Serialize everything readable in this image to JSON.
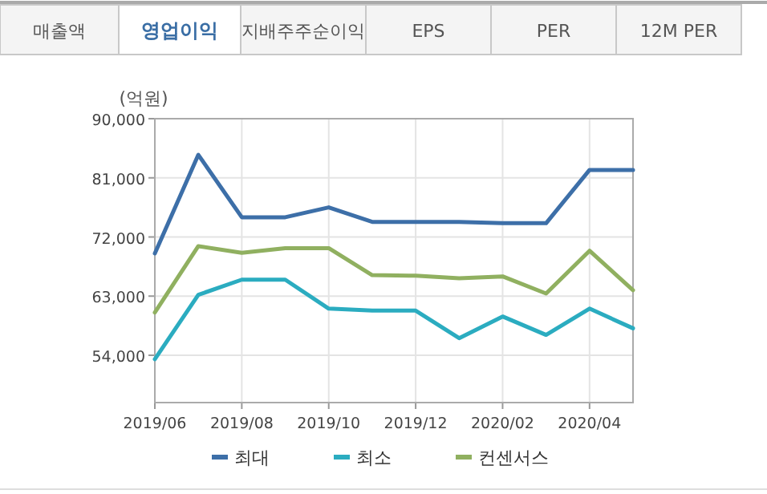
{
  "chart_data": {
    "type": "line",
    "ylabel": "(억원)",
    "annotations": [
      "매출액",
      "영업이익",
      "지배주주순이익",
      "EPS",
      "PER",
      "12M PER"
    ],
    "x": [
      "2019-06",
      "2019-07",
      "2019-08",
      "2019-09",
      "2019-10",
      "2019-11",
      "2019-12",
      "2020-01",
      "2020-02",
      "2020-03",
      "2020-04",
      "2020-05"
    ],
    "series": [
      {
        "name": "최대",
        "color": "#3d6fa8",
        "values": [
          69500,
          84500,
          75000,
          75000,
          76500,
          74300,
          74300,
          74300,
          74100,
          74100,
          82200,
          82200
        ]
      },
      {
        "name": "최소",
        "color": "#2bacc0",
        "values": [
          53400,
          63200,
          65500,
          65500,
          61100,
          60800,
          60800,
          56600,
          59900,
          57100,
          61100,
          58100
        ]
      },
      {
        "name": "컨센서스",
        "color": "#90b060",
        "values": [
          60500,
          70600,
          69600,
          70300,
          70300,
          66200,
          66100,
          65700,
          66000,
          63400,
          69900,
          63900
        ]
      }
    ],
    "xlim": [
      "2019-06",
      "2020-05"
    ],
    "xticks": [
      {
        "value": "2019-06",
        "label": "2019/06"
      },
      {
        "value": "2019-08",
        "label": "2019/08"
      },
      {
        "value": "2019-10",
        "label": "2019/10"
      },
      {
        "value": "2019-12",
        "label": "2019/12"
      },
      {
        "value": "2020-02",
        "label": "2020/02"
      },
      {
        "value": "2020-04",
        "label": "2020/04"
      }
    ],
    "ylim": [
      46800,
      90000
    ],
    "yticks": [
      {
        "value": 54000,
        "label": "54,000"
      },
      {
        "value": 63000,
        "label": "63,000"
      },
      {
        "value": 72000,
        "label": "72,000"
      },
      {
        "value": 81000,
        "label": "81,000"
      },
      {
        "value": 90000,
        "label": "90,000"
      }
    ],
    "grid": true,
    "legend": "bottom",
    "marker": "none",
    "line_style": "solid"
  }
}
